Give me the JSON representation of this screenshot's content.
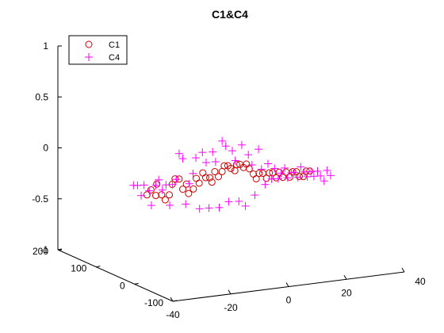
{
  "chart_data": {
    "type": "scatter",
    "title": "C1&C4",
    "view": "3d",
    "grid": false,
    "legend_position": "top-left",
    "axes": {
      "x": {
        "range": [
          -40,
          40
        ],
        "ticks": [
          "-40",
          "-20",
          "0",
          "20",
          "40"
        ]
      },
      "y": {
        "range": [
          -100,
          200
        ],
        "ticks": [
          "-100",
          "0",
          "100",
          "200"
        ]
      },
      "z": {
        "range": [
          -1,
          1
        ],
        "ticks": [
          "-1",
          "-0.5",
          "0",
          "0.5",
          "1"
        ]
      }
    },
    "series": [
      {
        "name": "C1",
        "marker": "circle",
        "color": "#cc0000",
        "points": [
          [
            -32,
            28,
            -0.2
          ],
          [
            -31,
            25,
            -0.15
          ],
          [
            -30,
            20,
            -0.2
          ],
          [
            -29,
            25,
            -0.1
          ],
          [
            -28,
            20,
            -0.2
          ],
          [
            -27,
            18,
            -0.25
          ],
          [
            -26,
            15,
            -0.2
          ],
          [
            -25,
            15,
            -0.1
          ],
          [
            -24,
            15,
            -0.05
          ],
          [
            -23,
            12,
            -0.05
          ],
          [
            -22,
            10,
            -0.15
          ],
          [
            -21,
            8,
            -0.1
          ],
          [
            -20,
            10,
            -0.2
          ],
          [
            -19,
            5,
            -0.15
          ],
          [
            -18,
            5,
            -0.05
          ],
          [
            -17,
            5,
            -0.1
          ],
          [
            -16,
            3,
            0.0
          ],
          [
            -15,
            3,
            -0.05
          ],
          [
            -14,
            0,
            -0.05
          ],
          [
            -13,
            2,
            -0.1
          ],
          [
            -12,
            2,
            0.0
          ],
          [
            -11,
            0,
            -0.05
          ],
          [
            -10,
            -2,
            0.0
          ],
          [
            -9,
            0,
            0.05
          ],
          [
            -8,
            -2,
            0.05
          ],
          [
            -7,
            -2,
            0.02
          ],
          [
            -6,
            -5,
            0.0
          ],
          [
            -5,
            -2,
            0.05
          ],
          [
            -4,
            -3,
            0.05
          ],
          [
            -3,
            -5,
            0.02
          ],
          [
            -2,
            -5,
            0.05
          ],
          [
            -1,
            -5,
            0.0
          ],
          [
            0,
            -8,
            -0.05
          ],
          [
            1,
            -8,
            -0.1
          ],
          [
            2,
            -8,
            -0.05
          ],
          [
            3,
            -10,
            -0.05
          ],
          [
            4,
            -12,
            -0.1
          ],
          [
            5,
            -12,
            -0.05
          ],
          [
            6,
            -13,
            -0.05
          ],
          [
            7,
            -15,
            -0.1
          ],
          [
            8,
            -15,
            -0.05
          ],
          [
            9,
            -17,
            -0.1
          ],
          [
            10,
            -18,
            -0.05
          ],
          [
            11,
            -20,
            -0.1
          ],
          [
            12,
            -20,
            -0.05
          ],
          [
            13,
            -22,
            -0.05
          ],
          [
            14,
            -22,
            -0.1
          ],
          [
            15,
            -25,
            -0.1
          ],
          [
            16,
            -25,
            -0.05
          ],
          [
            17,
            -27,
            -0.05
          ]
        ]
      },
      {
        "name": "C4",
        "marker": "plus",
        "color": "#ff00ff",
        "points": [
          [
            -35,
            30,
            -0.1
          ],
          [
            -34,
            28,
            -0.2
          ],
          [
            -33,
            28,
            -0.1
          ],
          [
            -32,
            22,
            -0.15
          ],
          [
            -30,
            20,
            -0.1
          ],
          [
            -29,
            20,
            -0.05
          ],
          [
            -28,
            18,
            -0.15
          ],
          [
            -27,
            16,
            -0.1
          ],
          [
            -26,
            14,
            -0.3
          ],
          [
            -25,
            14,
            -0.1
          ],
          [
            -24,
            12,
            -0.05
          ],
          [
            -23,
            12,
            0.2
          ],
          [
            -22,
            10,
            0.15
          ],
          [
            -21,
            10,
            -0.3
          ],
          [
            -20,
            8,
            -0.1
          ],
          [
            -19,
            6,
            0.0
          ],
          [
            -18,
            6,
            0.15
          ],
          [
            -17,
            4,
            -0.35
          ],
          [
            -16,
            4,
            0.2
          ],
          [
            -15,
            2,
            0.1
          ],
          [
            -14,
            2,
            -0.35
          ],
          [
            -13,
            0,
            0.2
          ],
          [
            -12,
            0,
            0.1
          ],
          [
            -11,
            -2,
            -0.35
          ],
          [
            -10,
            -2,
            0.3
          ],
          [
            -9,
            -4,
            0.25
          ],
          [
            -8,
            -4,
            -0.3
          ],
          [
            -7,
            -6,
            0.2
          ],
          [
            -6,
            -6,
            0.1
          ],
          [
            -5,
            -8,
            -0.3
          ],
          [
            -4,
            -8,
            0.25
          ],
          [
            -3,
            -10,
            -0.35
          ],
          [
            -2,
            -10,
            0.15
          ],
          [
            -1,
            -12,
            0.05
          ],
          [
            0,
            -12,
            -0.25
          ],
          [
            1,
            -14,
            0.2
          ],
          [
            2,
            -14,
            0.0
          ],
          [
            3,
            -16,
            -0.15
          ],
          [
            4,
            -16,
            0.05
          ],
          [
            5,
            -18,
            -0.1
          ],
          [
            6,
            -18,
            0.0
          ],
          [
            7,
            -20,
            -0.1
          ],
          [
            8,
            -20,
            -0.05
          ],
          [
            9,
            -22,
            0.0
          ],
          [
            10,
            -22,
            -0.1
          ],
          [
            11,
            -24,
            -0.05
          ],
          [
            12,
            -24,
            -0.05
          ],
          [
            13,
            -26,
            -0.1
          ],
          [
            14,
            -26,
            0.0
          ],
          [
            15,
            -28,
            -0.05
          ],
          [
            16,
            -28,
            -0.1
          ],
          [
            17,
            -30,
            -0.05
          ],
          [
            18,
            -30,
            -0.1
          ],
          [
            19,
            -32,
            -0.05
          ],
          [
            20,
            -32,
            -0.1
          ],
          [
            21,
            -34,
            -0.15
          ],
          [
            22,
            -34,
            -0.05
          ],
          [
            -31,
            24,
            -0.3
          ],
          [
            -36,
            33,
            -0.1
          ],
          [
            23,
            -36,
            -0.1
          ]
        ]
      }
    ]
  }
}
